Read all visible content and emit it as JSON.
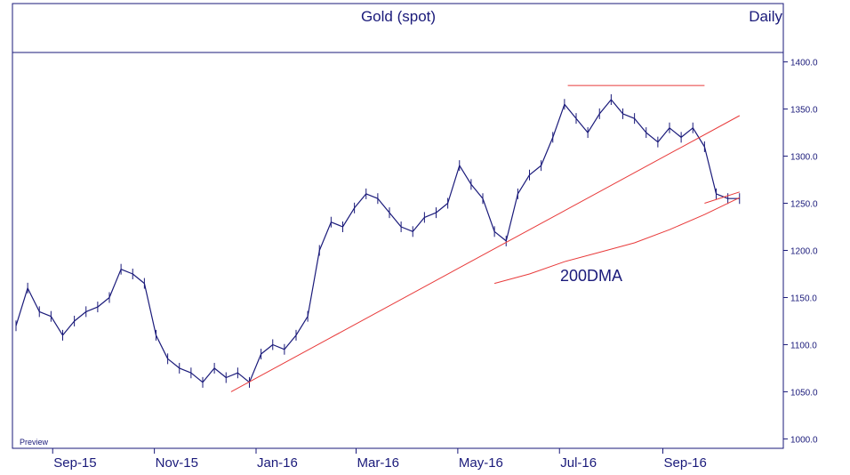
{
  "chart_data": {
    "type": "line",
    "title": "Gold (spot)",
    "frequency_label": "Daily",
    "footer_label": "Preview",
    "annotation": "200DMA",
    "ylim": [
      990,
      1410
    ],
    "y_ticks": [
      "1400.0",
      "1350.0",
      "1300.0",
      "1250.0",
      "1200.0",
      "1150.0",
      "1100.0",
      "1050.0",
      "1000.0"
    ],
    "y_tick_values": [
      1400,
      1350,
      1300,
      1250,
      1200,
      1150,
      1100,
      1050,
      1000
    ],
    "x_labels": [
      "Sep-15",
      "Nov-15",
      "Jan-16",
      "Mar-16",
      "May-16",
      "Jul-16",
      "Sep-16"
    ],
    "x_label_dates": [
      "2015-09-01",
      "2015-11-01",
      "2016-01-01",
      "2016-03-01",
      "2016-05-01",
      "2016-07-01",
      "2016-09-01"
    ],
    "xlim": [
      "2015-08-10",
      "2016-10-31"
    ],
    "colors": {
      "price": "#1a1a7a",
      "trend": "#e83a3a",
      "axis": "#1a1a7a",
      "background": "#ffffff"
    },
    "series": [
      {
        "role": "price",
        "x": [
          "2015-08-10",
          "2015-08-17",
          "2015-08-24",
          "2015-08-31",
          "2015-09-07",
          "2015-09-14",
          "2015-09-21",
          "2015-09-28",
          "2015-10-05",
          "2015-10-12",
          "2015-10-19",
          "2015-10-26",
          "2015-11-02",
          "2015-11-09",
          "2015-11-16",
          "2015-11-23",
          "2015-11-30",
          "2015-12-07",
          "2015-12-14",
          "2015-12-21",
          "2015-12-28",
          "2016-01-04",
          "2016-01-11",
          "2016-01-18",
          "2016-01-25",
          "2016-02-01",
          "2016-02-08",
          "2016-02-15",
          "2016-02-22",
          "2016-02-29",
          "2016-03-07",
          "2016-03-14",
          "2016-03-21",
          "2016-03-28",
          "2016-04-04",
          "2016-04-11",
          "2016-04-18",
          "2016-04-25",
          "2016-05-02",
          "2016-05-09",
          "2016-05-16",
          "2016-05-23",
          "2016-05-30",
          "2016-06-06",
          "2016-06-13",
          "2016-06-20",
          "2016-06-27",
          "2016-07-04",
          "2016-07-11",
          "2016-07-18",
          "2016-07-25",
          "2016-08-01",
          "2016-08-08",
          "2016-08-15",
          "2016-08-22",
          "2016-08-29",
          "2016-09-05",
          "2016-09-12",
          "2016-09-19",
          "2016-09-26",
          "2016-10-03",
          "2016-10-10",
          "2016-10-17"
        ],
        "values": [
          1120,
          1160,
          1135,
          1130,
          1110,
          1125,
          1135,
          1140,
          1150,
          1180,
          1175,
          1165,
          1110,
          1085,
          1075,
          1070,
          1060,
          1075,
          1065,
          1070,
          1060,
          1090,
          1100,
          1095,
          1110,
          1130,
          1200,
          1230,
          1225,
          1245,
          1260,
          1255,
          1240,
          1225,
          1220,
          1235,
          1240,
          1250,
          1290,
          1270,
          1255,
          1220,
          1210,
          1260,
          1280,
          1290,
          1320,
          1355,
          1340,
          1325,
          1345,
          1360,
          1345,
          1340,
          1325,
          1315,
          1330,
          1320,
          1330,
          1310,
          1260,
          1255,
          1255
        ]
      },
      {
        "role": "200DMA",
        "x": [
          "2016-05-23",
          "2016-06-13",
          "2016-07-04",
          "2016-07-25",
          "2016-08-15",
          "2016-09-05",
          "2016-09-26",
          "2016-10-17"
        ],
        "values": [
          1165,
          1175,
          1188,
          1198,
          1208,
          1222,
          1238,
          1256
        ]
      },
      {
        "role": "trendline",
        "x": [
          "2015-12-17",
          "2016-10-17"
        ],
        "values": [
          1050,
          1343
        ]
      },
      {
        "role": "resistance",
        "x": [
          "2016-07-06",
          "2016-09-26"
        ],
        "values": [
          1375,
          1375
        ]
      },
      {
        "role": "short-channel",
        "x": [
          "2016-09-26",
          "2016-10-17"
        ],
        "values": [
          1250,
          1262
        ]
      }
    ]
  }
}
